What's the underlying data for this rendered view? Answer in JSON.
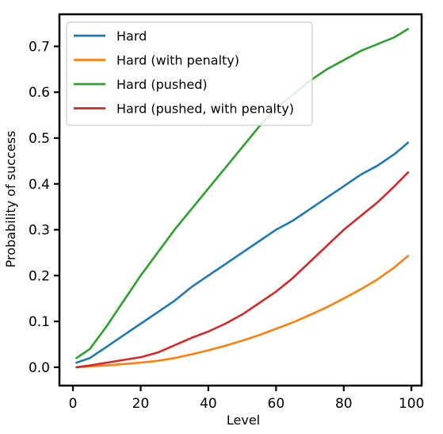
{
  "chart_data": {
    "type": "line",
    "title": "",
    "xlabel": "Level",
    "ylabel": "Probability of success",
    "xlim": [
      -4,
      103
    ],
    "ylim": [
      -0.04,
      0.77
    ],
    "xticks": [
      0,
      20,
      40,
      60,
      80,
      100
    ],
    "yticks": [
      0.0,
      0.1,
      0.2,
      0.3,
      0.4,
      0.5,
      0.6,
      0.7
    ],
    "ytick_labels": [
      "0.0",
      "0.1",
      "0.2",
      "0.3",
      "0.4",
      "0.5",
      "0.6",
      "0.7"
    ],
    "xtick_labels": [
      "0",
      "20",
      "40",
      "60",
      "80",
      "100"
    ],
    "grid": false,
    "legend_position": "top-left",
    "x": [
      1,
      5,
      10,
      15,
      20,
      25,
      30,
      35,
      40,
      45,
      50,
      55,
      60,
      65,
      70,
      75,
      80,
      85,
      90,
      95,
      99
    ],
    "series": [
      {
        "name": "Hard",
        "color": "#1f77b4",
        "values": [
          0.01,
          0.02,
          0.045,
          0.07,
          0.095,
          0.12,
          0.145,
          0.175,
          0.2,
          0.225,
          0.25,
          0.275,
          0.3,
          0.32,
          0.345,
          0.37,
          0.395,
          0.42,
          0.44,
          0.465,
          0.49
        ]
      },
      {
        "name": "Hard (with penalty)",
        "color": "#ff7f0e",
        "values": [
          0.0,
          0.002,
          0.004,
          0.007,
          0.01,
          0.014,
          0.02,
          0.028,
          0.037,
          0.047,
          0.058,
          0.07,
          0.084,
          0.098,
          0.114,
          0.131,
          0.15,
          0.17,
          0.192,
          0.218,
          0.243
        ]
      },
      {
        "name": "Hard (pushed)",
        "color": "#2ca02c",
        "values": [
          0.02,
          0.04,
          0.09,
          0.145,
          0.2,
          0.25,
          0.3,
          0.345,
          0.39,
          0.435,
          0.48,
          0.525,
          0.565,
          0.595,
          0.625,
          0.65,
          0.67,
          0.69,
          0.705,
          0.72,
          0.738
        ]
      },
      {
        "name": "Hard (pushed, with penalty)",
        "color": "#d62728",
        "values": [
          0.0,
          0.004,
          0.01,
          0.016,
          0.022,
          0.032,
          0.048,
          0.064,
          0.078,
          0.095,
          0.115,
          0.14,
          0.165,
          0.195,
          0.23,
          0.265,
          0.3,
          0.33,
          0.36,
          0.395,
          0.425
        ]
      }
    ]
  }
}
